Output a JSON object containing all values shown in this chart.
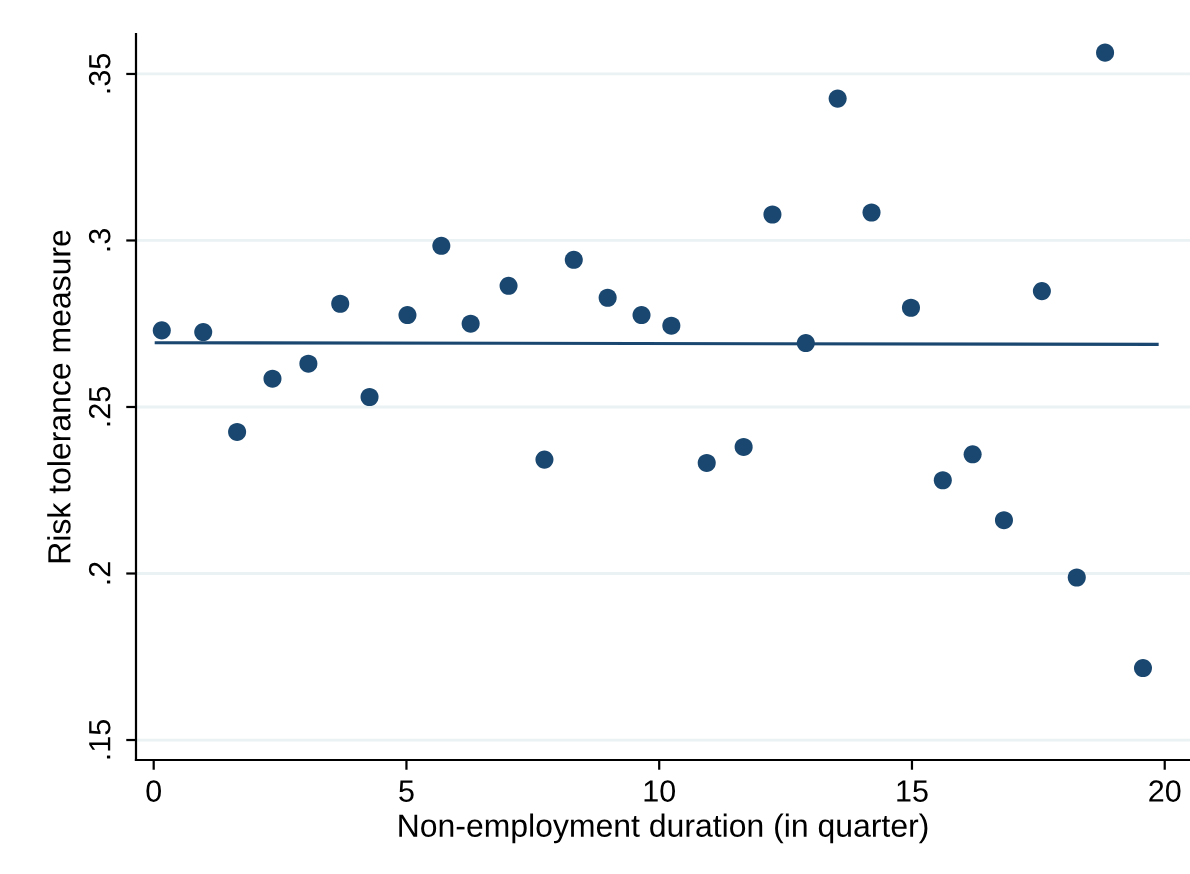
{
  "chart_data": {
    "type": "scatter",
    "xlabel": "Non-employment duration (in quarter)",
    "ylabel": "Risk tolerance measure",
    "xlim": [
      -0.35,
      20.5
    ],
    "ylim": [
      0.144,
      0.362
    ],
    "xticks": [
      0,
      5,
      10,
      15,
      20
    ],
    "yticks": [
      {
        "value": 0.15,
        "label": ".15"
      },
      {
        "value": 0.2,
        "label": ".2"
      },
      {
        "value": 0.25,
        "label": ".25"
      },
      {
        "value": 0.3,
        "label": ".3"
      },
      {
        "value": 0.35,
        "label": ".35"
      }
    ],
    "grid": "y",
    "marker": "circle",
    "series": [
      {
        "color": "#1a476f",
        "x": [
          0.16,
          0.98,
          1.65,
          2.35,
          3.06,
          3.69,
          4.27,
          5.02,
          5.69,
          6.27,
          7.02,
          7.73,
          8.31,
          8.98,
          9.65,
          10.24,
          10.94,
          11.67,
          12.24,
          12.9,
          13.53,
          14.2,
          14.98,
          15.61,
          16.2,
          16.82,
          17.57,
          18.26,
          18.82,
          19.57
        ],
        "values": [
          0.273,
          0.2725,
          0.2425,
          0.2585,
          0.263,
          0.281,
          0.253,
          0.2776,
          0.2984,
          0.275,
          0.2864,
          0.2342,
          0.2942,
          0.2828,
          0.2776,
          0.2744,
          0.2332,
          0.238,
          0.3078,
          0.2692,
          0.3426,
          0.3084,
          0.2798,
          0.228,
          0.2358,
          0.216,
          0.2848,
          0.1988,
          0.3564,
          0.1716
        ]
      },
      {
        "type": "line",
        "color": "#1a476f",
        "marker": "none",
        "x": [
          0.05,
          19.85
        ],
        "values": [
          0.2693,
          0.2688
        ]
      }
    ]
  }
}
